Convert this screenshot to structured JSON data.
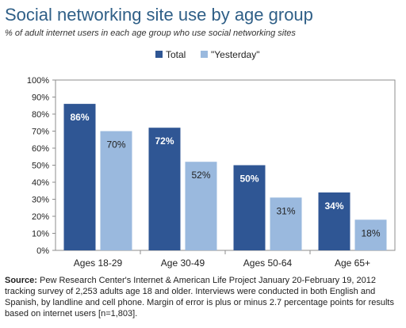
{
  "title": "Social networking site use by age group",
  "subtitle": "% of adult internet users in each age group who use social networking sites",
  "source_label": "Source:",
  "source_text": " Pew Research Center's Internet & American Life Project January 20-February 19, 2012 tracking survey of 2,253 adults age 18 and older. Interviews were conducted in both English and Spanish, by landline and cell phone. Margin of error is plus or minus 2.7 percentage points for results based on internet users [n=1,803].",
  "colors": {
    "total": "#2f5694",
    "yesterday": "#9ab9de",
    "title": "#2f5f87"
  },
  "chart_data": {
    "type": "bar",
    "categories": [
      "Ages 18-29",
      "Age 30-49",
      "Ages 50-64",
      "Age 65+"
    ],
    "series": [
      {
        "name": "Total",
        "values": [
          86,
          72,
          50,
          34
        ],
        "labels": [
          "86%",
          "72%",
          "50%",
          "34%"
        ]
      },
      {
        "name": "\"Yesterday\"",
        "values": [
          70,
          52,
          31,
          18
        ],
        "labels": [
          "70%",
          "52%",
          "31%",
          "18%"
        ]
      }
    ],
    "ylim": [
      0,
      100
    ],
    "yticks": [
      "0%",
      "10%",
      "20%",
      "30%",
      "40%",
      "50%",
      "60%",
      "70%",
      "80%",
      "90%",
      "100%"
    ],
    "grid": false,
    "legend_position": "top"
  }
}
